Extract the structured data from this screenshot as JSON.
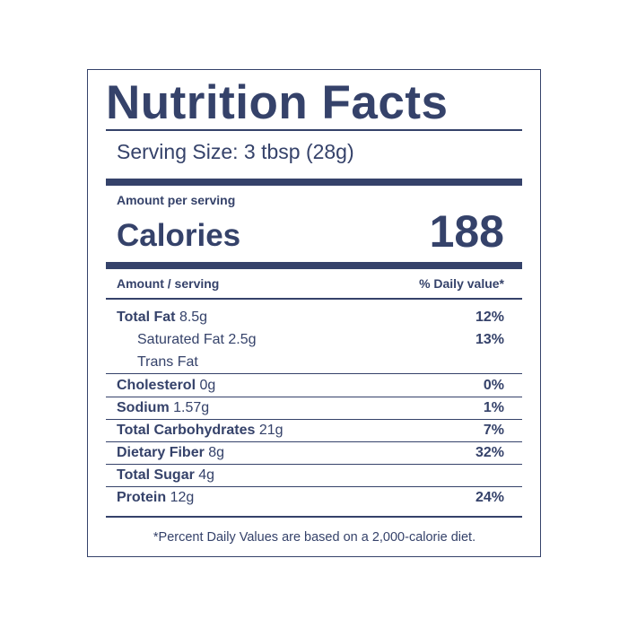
{
  "header": {
    "title": "Nutrition Facts",
    "serving_size": "Serving Size: 3 tbsp (28g)"
  },
  "calories": {
    "label_above": "Amount per serving",
    "label": "Calories",
    "value": 188
  },
  "table": {
    "header": [
      "Amount / serving",
      "% Daily value*"
    ],
    "rows": [
      {
        "name": "Total Fat",
        "amount": "8.5g",
        "dv": "12%"
      },
      {
        "name": "Saturated Fat",
        "amount": "2.5g",
        "dv": "13%"
      },
      {
        "name": "Trans Fat"
      },
      {
        "name": "Cholesterol",
        "amount": "0g",
        "dv": "0%"
      },
      {
        "name": "Sodium",
        "amount": "1.57g",
        "dv": "1%"
      },
      {
        "name": "Total Carbohydrates",
        "amount": "21g",
        "dv": "7%"
      },
      {
        "name": "Dietary Fiber",
        "amount": "8g",
        "dv": "32%"
      },
      {
        "name": "Total Sugar",
        "amount": "4g"
      },
      {
        "name": "Protein",
        "amount": "12g",
        "dv": "24%"
      }
    ]
  },
  "footnote": "*Percent Daily Values are based on a 2,000-calorie diet."
}
